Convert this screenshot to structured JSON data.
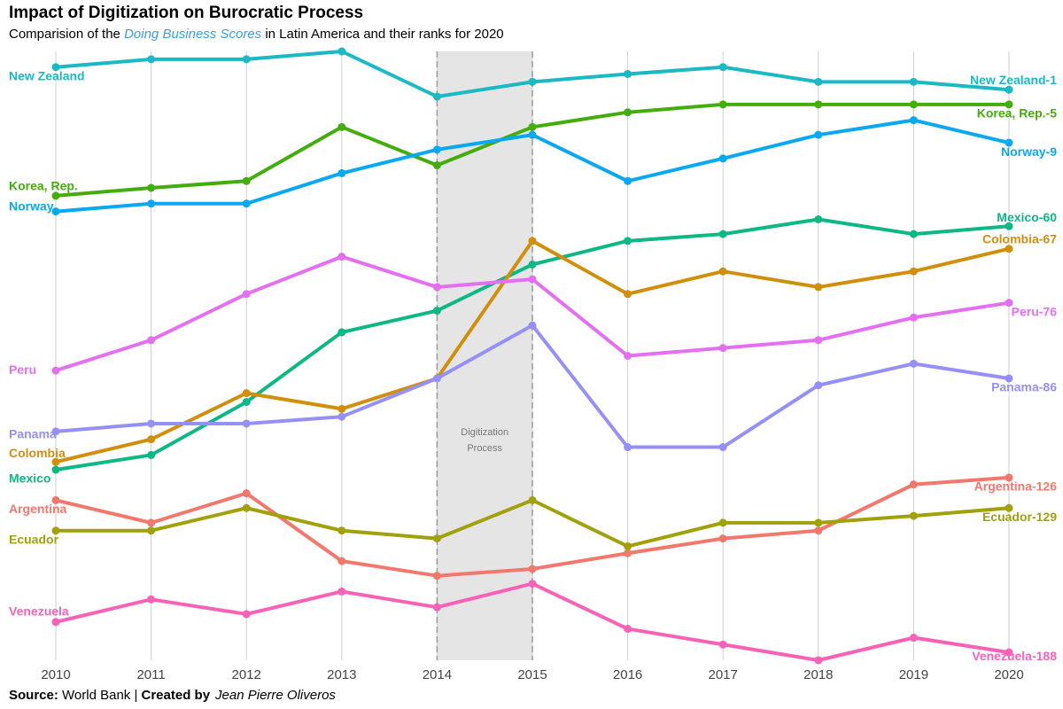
{
  "chart_data": {
    "type": "line",
    "title": "Impact of Digitization on Burocratic Process",
    "subtitle": [
      "Comparision of the ",
      "Doing Business Scores",
      " in Latin America and their ranks for 2020"
    ],
    "caption": [
      "Source:",
      " World Bank | ",
      "Created by",
      "Jean Pierre Oliveros"
    ],
    "x": [
      2010,
      2011,
      2012,
      2013,
      2014,
      2015,
      2016,
      2017,
      2018,
      2019,
      2020
    ],
    "xlim": [
      2010,
      2020
    ],
    "xticks": [
      2010,
      2011,
      2012,
      2013,
      2014,
      2015,
      2016,
      2017,
      2018,
      2019,
      2020
    ],
    "ylim": [
      29,
      91
    ],
    "grid": true,
    "highlight": {
      "x": [
        2014,
        2015
      ],
      "label": [
        "Digitization",
        "Process"
      ]
    },
    "series": [
      {
        "name": "New Zealand",
        "end_label": "New Zealand-1",
        "color": "#1ab9c4",
        "values": [
          89.4,
          90.2,
          90.2,
          91.0,
          86.4,
          87.9,
          88.7,
          89.4,
          87.9,
          87.9,
          87.1
        ]
      },
      {
        "name": "Korea, Rep.",
        "end_label": "Korea, Rep.-5",
        "color": "#44ad0e",
        "values": [
          76.3,
          77.1,
          77.8,
          83.3,
          79.4,
          83.3,
          84.8,
          85.6,
          85.6,
          85.6,
          85.6
        ]
      },
      {
        "name": "Norway",
        "end_label": "Norway-9",
        "color": "#0aa8f0",
        "values": [
          74.7,
          75.5,
          75.5,
          78.6,
          81.0,
          82.5,
          77.8,
          80.1,
          82.5,
          84.0,
          81.7
        ]
      },
      {
        "name": "Mexico",
        "end_label": "Mexico-60",
        "color": "#0db884",
        "values": [
          48.4,
          49.9,
          55.3,
          62.4,
          64.6,
          69.3,
          71.7,
          72.4,
          73.9,
          72.4,
          73.2
        ]
      },
      {
        "name": "Colombia",
        "end_label": "Colombia-67",
        "color": "#d08f0c",
        "values": [
          49.2,
          51.5,
          56.2,
          54.6,
          57.7,
          71.7,
          66.3,
          68.6,
          67.0,
          68.6,
          70.9
        ]
      },
      {
        "name": "Peru",
        "end_label": "Peru-76",
        "color": "#e46ff0",
        "values": [
          58.5,
          61.6,
          66.3,
          70.1,
          67.0,
          67.8,
          60.0,
          60.8,
          61.6,
          63.9,
          65.4
        ]
      },
      {
        "name": "Panama",
        "end_label": "Panama-86",
        "color": "#9590f5",
        "values": [
          52.3,
          53.1,
          53.1,
          53.8,
          57.7,
          63.1,
          50.7,
          50.7,
          57.0,
          59.2,
          57.7
        ]
      },
      {
        "name": "Argentina",
        "end_label": "Argentina-126",
        "color": "#f2776d",
        "values": [
          45.3,
          43.0,
          46.0,
          39.1,
          37.6,
          38.3,
          39.9,
          41.4,
          42.2,
          46.9,
          47.6
        ]
      },
      {
        "name": "Ecuador",
        "end_label": "Ecuador-129",
        "color": "#a0a10c",
        "values": [
          42.2,
          42.2,
          44.5,
          42.2,
          41.4,
          45.3,
          40.6,
          43.0,
          43.0,
          43.7,
          44.5
        ]
      },
      {
        "name": "Venezuela",
        "end_label": "Venezuela-188",
        "color": "#f762b8",
        "values": [
          32.9,
          35.2,
          33.7,
          36.0,
          34.4,
          36.8,
          32.2,
          30.6,
          29.0,
          31.3,
          29.8
        ]
      }
    ]
  }
}
